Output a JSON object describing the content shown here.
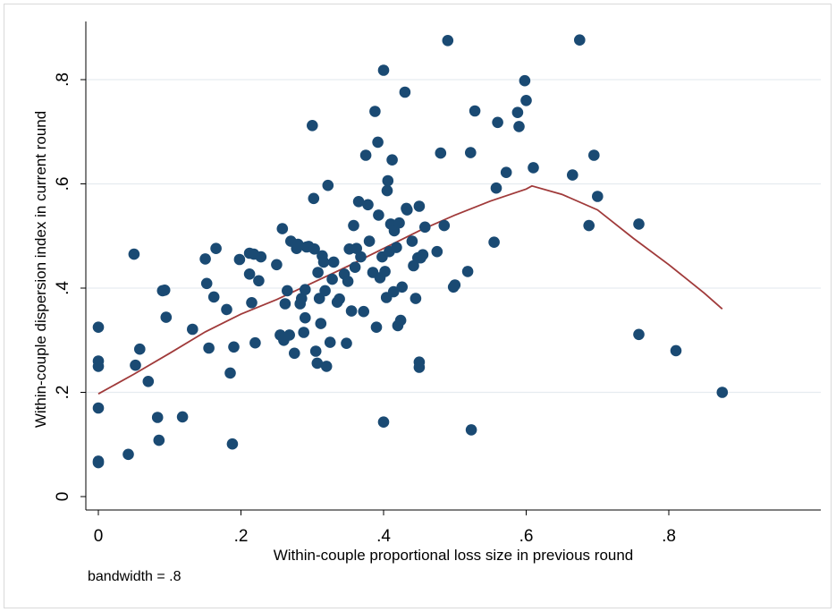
{
  "chart_data": {
    "type": "scatter",
    "xlabel": "Within-couple proportional loss size in previous round",
    "ylabel": "Within-couple dispersion index in current round",
    "xlim": [
      0,
      0.88
    ],
    "ylim": [
      0,
      0.9
    ],
    "x_ticks": [
      0,
      0.2,
      0.4,
      0.6,
      0.8
    ],
    "x_tick_labels": [
      "0",
      ".2",
      ".4",
      ".6",
      ".8"
    ],
    "y_ticks": [
      0,
      0.2,
      0.4,
      0.6,
      0.8
    ],
    "y_tick_labels": [
      "0",
      ".2",
      ".4",
      ".6",
      ".8"
    ],
    "grid": "horizontal",
    "note": "bandwidth = .8",
    "colors": {
      "points": "#1a4a73",
      "curve": "#a03a3a",
      "grid": "#e6ecf0",
      "axis": "#000000"
    },
    "series": [
      {
        "type": "scatter",
        "points": [
          [
            0.0,
            0.325
          ],
          [
            0.0,
            0.26
          ],
          [
            0.0,
            0.25
          ],
          [
            0.0,
            0.17
          ],
          [
            0.0,
            0.068
          ],
          [
            0.0,
            0.065
          ],
          [
            0.042,
            0.081
          ],
          [
            0.05,
            0.465
          ],
          [
            0.052,
            0.252
          ],
          [
            0.058,
            0.283
          ],
          [
            0.07,
            0.221
          ],
          [
            0.083,
            0.152
          ],
          [
            0.085,
            0.108
          ],
          [
            0.09,
            0.395
          ],
          [
            0.093,
            0.396
          ],
          [
            0.095,
            0.344
          ],
          [
            0.118,
            0.153
          ],
          [
            0.132,
            0.321
          ],
          [
            0.15,
            0.456
          ],
          [
            0.152,
            0.409
          ],
          [
            0.155,
            0.285
          ],
          [
            0.162,
            0.383
          ],
          [
            0.165,
            0.476
          ],
          [
            0.18,
            0.359
          ],
          [
            0.185,
            0.237
          ],
          [
            0.188,
            0.101
          ],
          [
            0.19,
            0.287
          ],
          [
            0.198,
            0.455
          ],
          [
            0.212,
            0.467
          ],
          [
            0.212,
            0.427
          ],
          [
            0.215,
            0.372
          ],
          [
            0.218,
            0.465
          ],
          [
            0.22,
            0.295
          ],
          [
            0.225,
            0.414
          ],
          [
            0.228,
            0.46
          ],
          [
            0.25,
            0.445
          ],
          [
            0.255,
            0.31
          ],
          [
            0.258,
            0.514
          ],
          [
            0.26,
            0.3
          ],
          [
            0.262,
            0.37
          ],
          [
            0.265,
            0.395
          ],
          [
            0.268,
            0.31
          ],
          [
            0.27,
            0.49
          ],
          [
            0.275,
            0.275
          ],
          [
            0.278,
            0.476
          ],
          [
            0.28,
            0.484
          ],
          [
            0.283,
            0.37
          ],
          [
            0.285,
            0.38
          ],
          [
            0.288,
            0.315
          ],
          [
            0.29,
            0.343
          ],
          [
            0.29,
            0.397
          ],
          [
            0.292,
            0.479
          ],
          [
            0.295,
            0.48
          ],
          [
            0.3,
            0.712
          ],
          [
            0.302,
            0.572
          ],
          [
            0.303,
            0.475
          ],
          [
            0.305,
            0.279
          ],
          [
            0.307,
            0.256
          ],
          [
            0.308,
            0.43
          ],
          [
            0.31,
            0.38
          ],
          [
            0.312,
            0.332
          ],
          [
            0.314,
            0.462
          ],
          [
            0.316,
            0.45
          ],
          [
            0.318,
            0.395
          ],
          [
            0.32,
            0.25
          ],
          [
            0.322,
            0.597
          ],
          [
            0.325,
            0.296
          ],
          [
            0.328,
            0.417
          ],
          [
            0.33,
            0.45
          ],
          [
            0.335,
            0.373
          ],
          [
            0.338,
            0.379
          ],
          [
            0.345,
            0.427
          ],
          [
            0.348,
            0.294
          ],
          [
            0.35,
            0.413
          ],
          [
            0.352,
            0.475
          ],
          [
            0.355,
            0.356
          ],
          [
            0.358,
            0.52
          ],
          [
            0.36,
            0.44
          ],
          [
            0.362,
            0.476
          ],
          [
            0.365,
            0.566
          ],
          [
            0.368,
            0.46
          ],
          [
            0.372,
            0.355
          ],
          [
            0.375,
            0.655
          ],
          [
            0.378,
            0.56
          ],
          [
            0.38,
            0.49
          ],
          [
            0.385,
            0.43
          ],
          [
            0.388,
            0.739
          ],
          [
            0.39,
            0.325
          ],
          [
            0.392,
            0.68
          ],
          [
            0.393,
            0.54
          ],
          [
            0.395,
            0.42
          ],
          [
            0.398,
            0.46
          ],
          [
            0.4,
            0.818
          ],
          [
            0.4,
            0.143
          ],
          [
            0.402,
            0.432
          ],
          [
            0.404,
            0.382
          ],
          [
            0.405,
            0.587
          ],
          [
            0.406,
            0.606
          ],
          [
            0.408,
            0.47
          ],
          [
            0.41,
            0.523
          ],
          [
            0.412,
            0.646
          ],
          [
            0.414,
            0.393
          ],
          [
            0.415,
            0.51
          ],
          [
            0.418,
            0.478
          ],
          [
            0.42,
            0.328
          ],
          [
            0.422,
            0.525
          ],
          [
            0.424,
            0.338
          ],
          [
            0.426,
            0.402
          ],
          [
            0.43,
            0.776
          ],
          [
            0.432,
            0.553
          ],
          [
            0.433,
            0.55
          ],
          [
            0.44,
            0.49
          ],
          [
            0.442,
            0.443
          ],
          [
            0.445,
            0.38
          ],
          [
            0.448,
            0.458
          ],
          [
            0.45,
            0.557
          ],
          [
            0.45,
            0.258
          ],
          [
            0.45,
            0.248
          ],
          [
            0.452,
            0.458
          ],
          [
            0.455,
            0.464
          ],
          [
            0.458,
            0.517
          ],
          [
            0.475,
            0.47
          ],
          [
            0.48,
            0.659
          ],
          [
            0.485,
            0.52
          ],
          [
            0.49,
            0.875
          ],
          [
            0.498,
            0.402
          ],
          [
            0.5,
            0.406
          ],
          [
            0.518,
            0.432
          ],
          [
            0.522,
            0.66
          ],
          [
            0.523,
            0.128
          ],
          [
            0.528,
            0.74
          ],
          [
            0.555,
            0.488
          ],
          [
            0.558,
            0.592
          ],
          [
            0.56,
            0.718
          ],
          [
            0.572,
            0.622
          ],
          [
            0.588,
            0.737
          ],
          [
            0.59,
            0.71
          ],
          [
            0.598,
            0.798
          ],
          [
            0.6,
            0.76
          ],
          [
            0.61,
            0.631
          ],
          [
            0.665,
            0.617
          ],
          [
            0.675,
            0.876
          ],
          [
            0.688,
            0.52
          ],
          [
            0.695,
            0.655
          ],
          [
            0.7,
            0.576
          ],
          [
            0.758,
            0.523
          ],
          [
            0.758,
            0.311
          ],
          [
            0.81,
            0.28
          ],
          [
            0.875,
            0.2
          ]
        ]
      },
      {
        "type": "line",
        "points": [
          [
            0.0,
            0.197
          ],
          [
            0.05,
            0.235
          ],
          [
            0.1,
            0.275
          ],
          [
            0.15,
            0.316
          ],
          [
            0.2,
            0.35
          ],
          [
            0.25,
            0.378
          ],
          [
            0.3,
            0.41
          ],
          [
            0.35,
            0.442
          ],
          [
            0.4,
            0.476
          ],
          [
            0.45,
            0.51
          ],
          [
            0.5,
            0.54
          ],
          [
            0.55,
            0.567
          ],
          [
            0.6,
            0.59
          ],
          [
            0.608,
            0.596
          ],
          [
            0.65,
            0.58
          ],
          [
            0.7,
            0.55
          ],
          [
            0.75,
            0.496
          ],
          [
            0.8,
            0.445
          ],
          [
            0.85,
            0.39
          ],
          [
            0.875,
            0.36
          ]
        ]
      }
    ]
  }
}
